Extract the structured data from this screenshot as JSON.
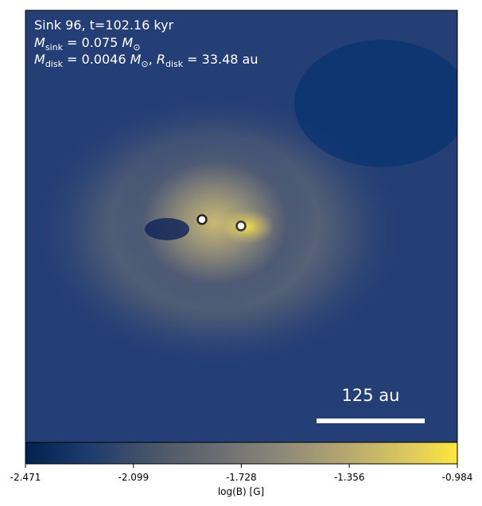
{
  "annotation": {
    "line1": "Sink 96, t=102.16 kyr",
    "line2": [
      "M",
      "sink",
      " = 0.075 ",
      "M",
      "⊙"
    ],
    "line3": [
      "M",
      "disk",
      " = 0.0046 ",
      "M",
      "⊙",
      ", ",
      "R",
      "disk",
      " = 33.48 au"
    ]
  },
  "scale_bar": "125 au",
  "colorbar": {
    "label": "log(B) [G]",
    "clim": [
      -2.471,
      -0.984
    ],
    "ticks": [
      -2.471,
      -2.099,
      -1.728,
      -1.356,
      -0.984
    ]
  }
}
